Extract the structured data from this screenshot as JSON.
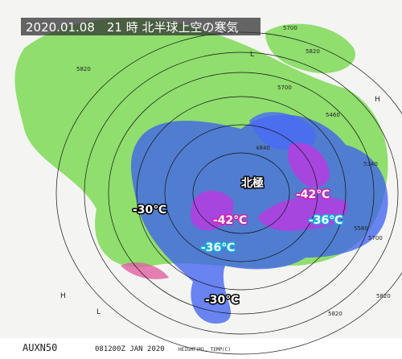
{
  "header": {
    "title": "2020.01.08　21 時 北半球上空の寒気"
  },
  "labels": [
    "北極",
    "-30℃",
    "-42℃",
    "-42℃",
    "-36℃",
    "-36℃",
    "-30℃"
  ],
  "contour_labels": [
    "5700",
    "5820",
    "5820",
    "5700",
    "5460",
    "4840",
    "5340",
    "5580",
    "5700",
    "5820",
    "5820"
  ],
  "pressure_marks": [
    "L",
    "H",
    "H",
    "L"
  ],
  "footer": {
    "code": "AUXN50",
    "time": "081200Z JAN 2020",
    "units": "HEIGHT(M), TEMP(C)"
  }
}
